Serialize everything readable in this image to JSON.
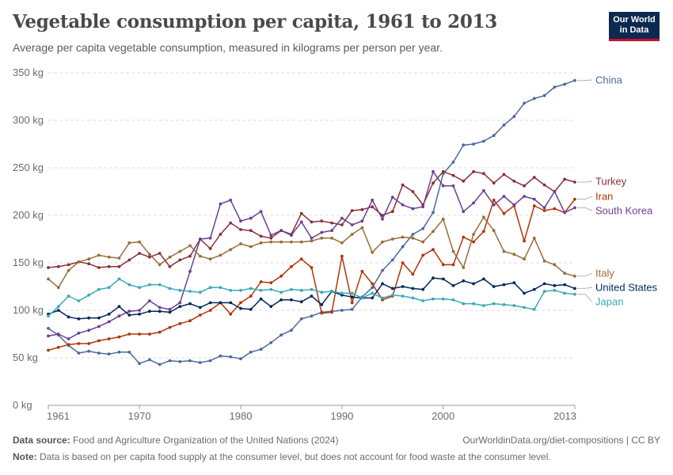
{
  "header": {
    "title": "Vegetable consumption per capita, 1961 to 2013",
    "subtitle": "Average per capita vegetable consumption, measured in kilograms per person per year.",
    "logo_line1": "Our World",
    "logo_line2": "in Data"
  },
  "footer": {
    "source_label": "Data source:",
    "source_text": "Food and Agriculture Organization of the United Nations (2024)",
    "url_text": "OurWorldinData.org/diet-compositions | CC BY",
    "note_label": "Note:",
    "note_text": "Data is based on per capita food supply at the consumer level, but does not account for food waste at the consumer level."
  },
  "chart_data": {
    "type": "line",
    "xlim": [
      1961,
      2013
    ],
    "ylim": [
      0,
      350
    ],
    "x_ticks": [
      1961,
      1970,
      1980,
      1990,
      2000,
      2013
    ],
    "y_ticks": [
      0,
      50,
      100,
      150,
      200,
      250,
      300,
      350
    ],
    "y_tick_labels": [
      "0 kg",
      "50 kg",
      "100 kg",
      "150 kg",
      "200 kg",
      "250 kg",
      "300 kg",
      "350 kg"
    ],
    "grid": "horizontal dashed",
    "legend": "right, line-end labels",
    "x": [
      1961,
      1962,
      1963,
      1964,
      1965,
      1966,
      1967,
      1968,
      1969,
      1970,
      1971,
      1972,
      1973,
      1974,
      1975,
      1976,
      1977,
      1978,
      1979,
      1980,
      1981,
      1982,
      1983,
      1984,
      1985,
      1986,
      1987,
      1988,
      1989,
      1990,
      1991,
      1992,
      1993,
      1994,
      1995,
      1996,
      1997,
      1998,
      1999,
      2000,
      2001,
      2002,
      2003,
      2004,
      2005,
      2006,
      2007,
      2008,
      2009,
      2010,
      2011,
      2012,
      2013
    ],
    "series": [
      {
        "name": "China",
        "color": "#4c6a9c",
        "values": [
          81,
          74,
          63,
          55,
          57,
          55,
          54,
          56,
          56,
          44,
          48,
          43,
          47,
          46,
          47,
          45,
          47,
          52,
          51,
          49,
          56,
          59,
          66,
          74,
          79,
          91,
          94,
          98,
          99,
          100,
          101,
          114,
          124,
          142,
          153,
          167,
          180,
          186,
          203,
          244,
          256,
          274,
          275,
          278,
          284,
          295,
          304,
          318,
          323,
          326,
          335,
          338,
          342
        ]
      },
      {
        "name": "Turkey",
        "color": "#883039",
        "values": [
          145,
          146,
          148,
          151,
          149,
          145,
          146,
          146,
          153,
          160,
          156,
          160,
          146,
          153,
          157,
          175,
          165,
          180,
          192,
          185,
          184,
          178,
          176,
          184,
          180,
          202,
          193,
          194,
          192,
          190,
          205,
          206,
          209,
          200,
          204,
          232,
          225,
          211,
          234,
          246,
          242,
          236,
          246,
          244,
          234,
          243,
          236,
          231,
          240,
          232,
          225,
          238,
          235
        ]
      },
      {
        "name": "Iran",
        "color": "#b13507",
        "values": [
          58,
          61,
          64,
          65,
          65,
          68,
          70,
          72,
          75,
          75,
          75,
          77,
          82,
          86,
          89,
          95,
          100,
          108,
          96,
          108,
          115,
          130,
          129,
          136,
          146,
          154,
          145,
          97,
          98,
          157,
          108,
          141,
          128,
          111,
          115,
          150,
          138,
          158,
          164,
          148,
          148,
          177,
          172,
          183,
          216,
          202,
          210,
          173,
          210,
          205,
          207,
          203,
          217
        ]
      },
      {
        "name": "South Korea",
        "color": "#6d3e91",
        "values": [
          73,
          75,
          70,
          76,
          79,
          83,
          88,
          94,
          99,
          100,
          110,
          103,
          101,
          108,
          141,
          175,
          176,
          212,
          216,
          194,
          197,
          204,
          179,
          184,
          179,
          193,
          176,
          182,
          184,
          197,
          190,
          194,
          216,
          196,
          219,
          211,
          207,
          209,
          246,
          231,
          231,
          204,
          213,
          226,
          211,
          220,
          211,
          220,
          217,
          208,
          225,
          203,
          208
        ]
      },
      {
        "name": "Italy",
        "color": "#996d39",
        "values": [
          133,
          124,
          142,
          151,
          154,
          158,
          156,
          155,
          171,
          172,
          159,
          148,
          156,
          162,
          168,
          157,
          154,
          158,
          164,
          170,
          167,
          171,
          172,
          172,
          172,
          172,
          173,
          176,
          176,
          171,
          180,
          187,
          161,
          172,
          175,
          177,
          176,
          172,
          183,
          196,
          162,
          145,
          180,
          198,
          184,
          162,
          159,
          154,
          176,
          152,
          148,
          139,
          136
        ]
      },
      {
        "name": "United States",
        "color": "#00295b",
        "values": [
          96,
          100,
          93,
          91,
          92,
          92,
          96,
          104,
          95,
          96,
          99,
          99,
          98,
          104,
          107,
          103,
          108,
          108,
          108,
          102,
          101,
          112,
          104,
          111,
          111,
          109,
          115,
          106,
          120,
          116,
          114,
          113,
          113,
          128,
          123,
          125,
          123,
          122,
          134,
          133,
          126,
          131,
          128,
          133,
          125,
          127,
          129,
          118,
          122,
          128,
          126,
          127,
          123
        ]
      },
      {
        "name": "Japan",
        "color": "#38aaba",
        "values": [
          94,
          104,
          115,
          110,
          116,
          122,
          124,
          133,
          127,
          124,
          127,
          127,
          123,
          121,
          120,
          119,
          124,
          124,
          121,
          121,
          123,
          121,
          122,
          119,
          122,
          121,
          122,
          119,
          120,
          118,
          118,
          113,
          118,
          113,
          116,
          115,
          113,
          110,
          112,
          112,
          111,
          107,
          107,
          105,
          107,
          106,
          105,
          103,
          101,
          120,
          121,
          118,
          117
        ]
      }
    ]
  }
}
